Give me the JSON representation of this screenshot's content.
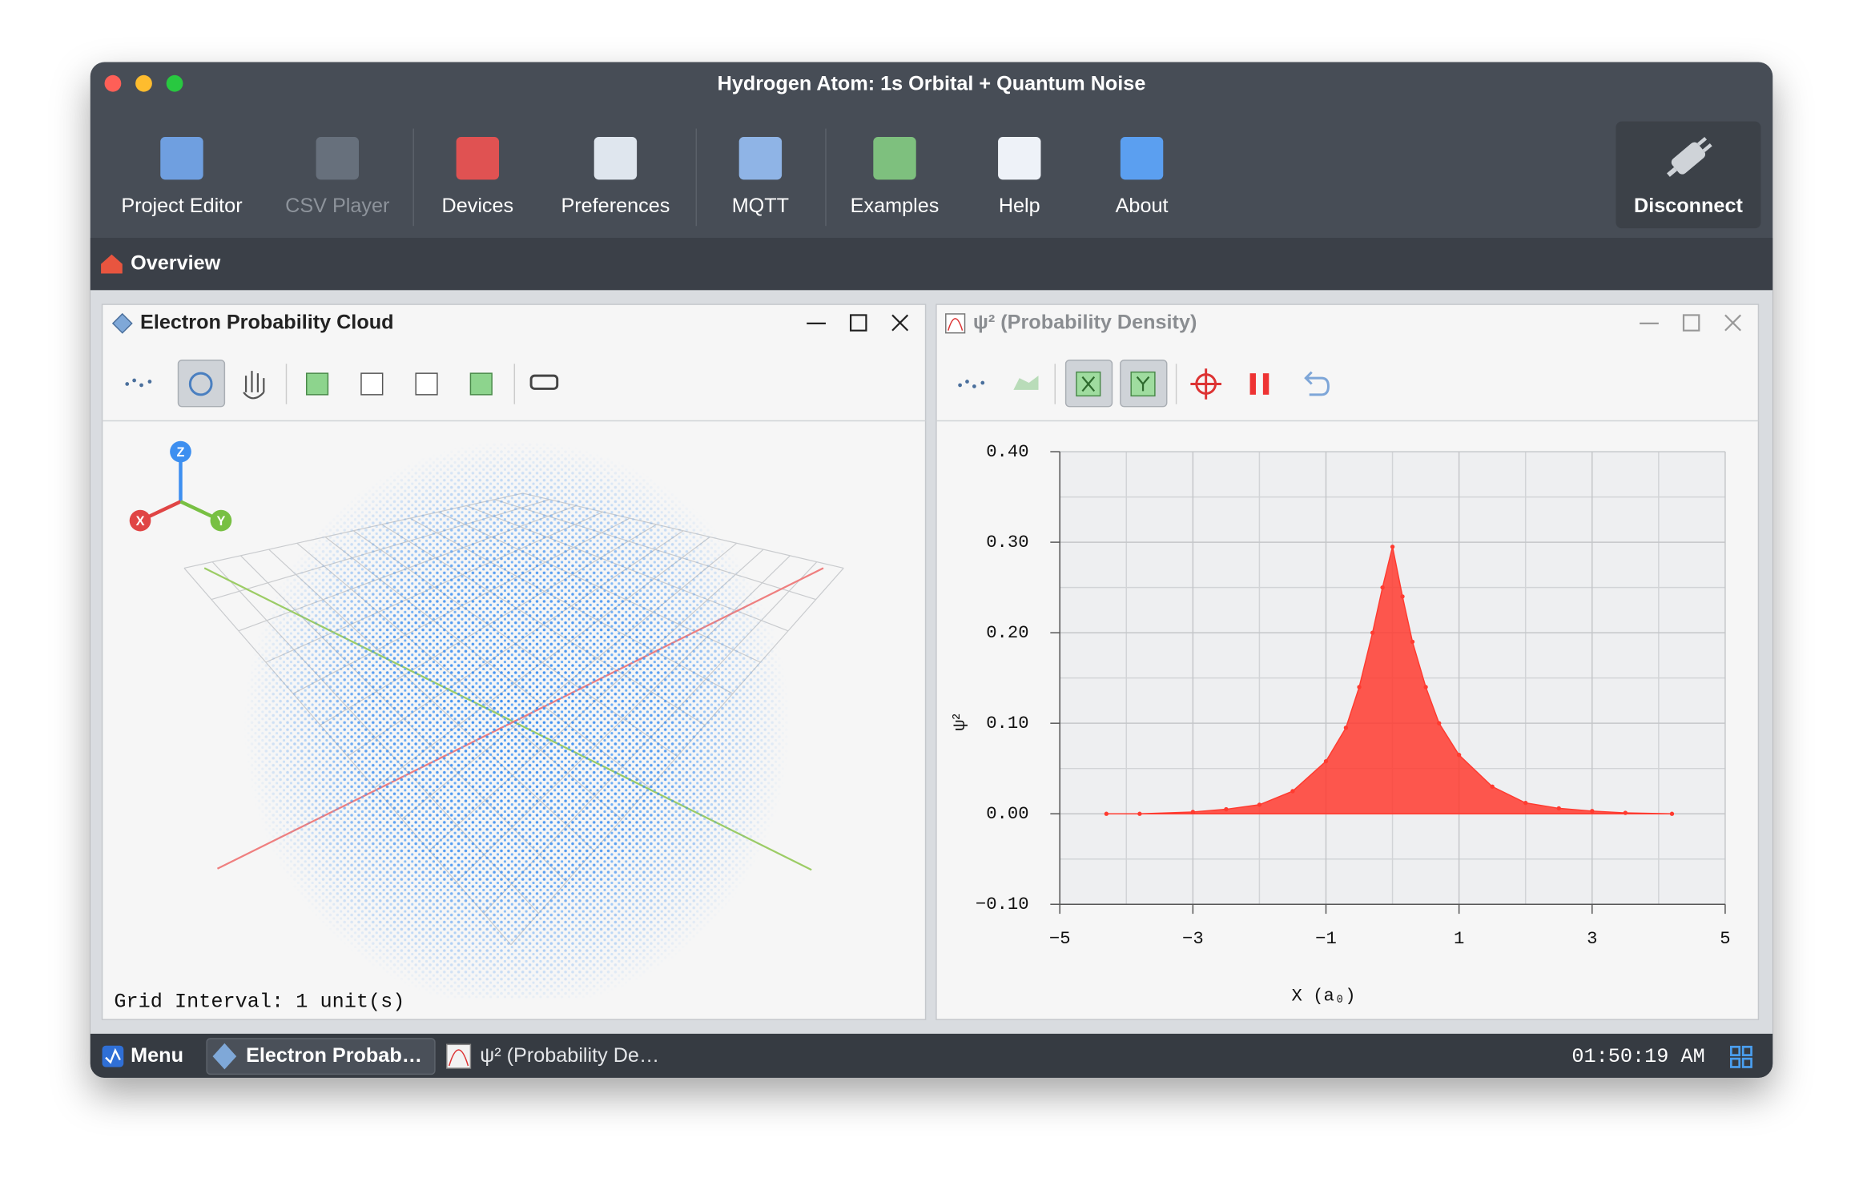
{
  "window": {
    "title": "Hydrogen Atom: 1s Orbital + Quantum Noise"
  },
  "toolbar": {
    "items": [
      "Project Editor",
      "CSV Player",
      "Devices",
      "Preferences",
      "MQTT",
      "Examples",
      "Help",
      "About"
    ],
    "disconnect": "Disconnect"
  },
  "breadcrumb": "Overview",
  "panels": [
    {
      "title": "Electron Probability Cloud",
      "footer": "Grid Interval: 1 unit(s)",
      "axes": [
        "Z",
        "X",
        "Y"
      ]
    },
    {
      "title": "ψ² (Probability Density)"
    }
  ],
  "chart_data": {
    "type": "scatter",
    "color": "#ff3b30",
    "grid": true,
    "xlabel": "X (a₀)",
    "ylabel": "ψ²",
    "x": [
      -4.3,
      -3.8,
      -3,
      -2.5,
      -2,
      -1.5,
      -1,
      -0.7,
      -0.5,
      -0.3,
      -0.15,
      0,
      0.15,
      0.3,
      0.5,
      0.7,
      1,
      1.5,
      2,
      2.5,
      3,
      3.5,
      4.2
    ],
    "values": [
      0,
      0,
      0.002,
      0.005,
      0.01,
      0.025,
      0.058,
      0.095,
      0.14,
      0.2,
      0.25,
      0.295,
      0.24,
      0.19,
      0.14,
      0.1,
      0.065,
      0.03,
      0.012,
      0.006,
      0.003,
      0.001,
      0
    ],
    "xlim": [
      -5,
      5
    ],
    "ylim": [
      -0.1,
      0.4
    ],
    "xticks": [
      {
        "value": -5,
        "label": "−5"
      },
      {
        "value": -3,
        "label": "−3"
      },
      {
        "value": -1,
        "label": "−1"
      },
      1,
      3,
      5
    ],
    "yticks": [
      {
        "value": -0.1,
        "label": "−0.10"
      },
      {
        "value": 0,
        "label": "0.00"
      },
      {
        "value": 0.1,
        "label": "0.10"
      },
      {
        "value": 0.2,
        "label": "0.20"
      },
      {
        "value": 0.3,
        "label": "0.30"
      },
      {
        "value": 0.4,
        "label": "0.40"
      }
    ]
  },
  "taskbar": {
    "menu": "Menu",
    "items": [
      "Electron Probab…",
      "ψ² (Probability De…"
    ],
    "clock": "01:50:19 AM"
  }
}
